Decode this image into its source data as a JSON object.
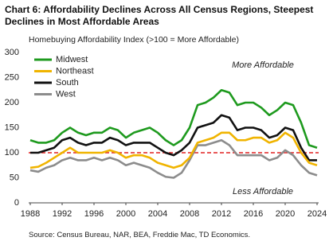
{
  "chart_data": {
    "type": "line",
    "title": "Chart 6: Affordability Declines Across All Census Regions, Steepest Declines in Most Affordable Areas",
    "subtitle": "Homebuying Affordability Index (>100 = More Affordable)",
    "source": "Source: Census Bureau, NAR, BEA, Freddie Mac, TD Economics.",
    "annotations": [
      "More Affordable",
      "Less Affordable"
    ],
    "x": [
      1988,
      1989,
      1990,
      1991,
      1992,
      1993,
      1994,
      1995,
      1996,
      1997,
      1998,
      1999,
      2000,
      2001,
      2002,
      2003,
      2004,
      2005,
      2006,
      2007,
      2008,
      2009,
      2010,
      2011,
      2012,
      2013,
      2014,
      2015,
      2016,
      2017,
      2018,
      2019,
      2020,
      2021,
      2022,
      2023,
      2024
    ],
    "xlim": [
      1988,
      2024
    ],
    "xticks": [
      1988,
      1992,
      1996,
      2000,
      2004,
      2008,
      2012,
      2016,
      2020,
      2024
    ],
    "ylim": [
      0,
      300
    ],
    "yticks": [
      0,
      50,
      100,
      150,
      200,
      250,
      300
    ],
    "reference_line": {
      "value": 100,
      "color": "#e02020"
    },
    "legend": "upper-left",
    "series": [
      {
        "name": "Midwest",
        "color": "#1e9a1e",
        "values": [
          125,
          120,
          120,
          125,
          140,
          150,
          140,
          135,
          140,
          140,
          150,
          145,
          130,
          140,
          145,
          150,
          140,
          125,
          115,
          125,
          150,
          195,
          200,
          210,
          225,
          220,
          195,
          200,
          200,
          190,
          175,
          185,
          200,
          195,
          160,
          115,
          110
        ]
      },
      {
        "name": "Northeast",
        "color": "#f0b400",
        "values": [
          70,
          72,
          80,
          90,
          100,
          110,
          100,
          100,
          100,
          100,
          105,
          100,
          90,
          95,
          95,
          90,
          80,
          75,
          70,
          75,
          90,
          120,
          125,
          130,
          140,
          140,
          125,
          125,
          130,
          130,
          120,
          125,
          140,
          130,
          100,
          80,
          75
        ]
      },
      {
        "name": "South",
        "color": "#111111",
        "values": [
          100,
          100,
          105,
          110,
          125,
          130,
          120,
          115,
          120,
          120,
          130,
          125,
          115,
          120,
          120,
          120,
          110,
          100,
          95,
          105,
          120,
          150,
          155,
          160,
          175,
          170,
          145,
          150,
          150,
          145,
          130,
          135,
          150,
          145,
          110,
          85,
          85
        ]
      },
      {
        "name": "West",
        "color": "#8c8c8c",
        "values": [
          65,
          62,
          70,
          75,
          85,
          90,
          85,
          85,
          90,
          85,
          90,
          85,
          75,
          80,
          75,
          70,
          60,
          52,
          50,
          60,
          85,
          115,
          115,
          120,
          125,
          115,
          95,
          95,
          95,
          95,
          85,
          90,
          105,
          95,
          75,
          60,
          55
        ]
      }
    ]
  }
}
